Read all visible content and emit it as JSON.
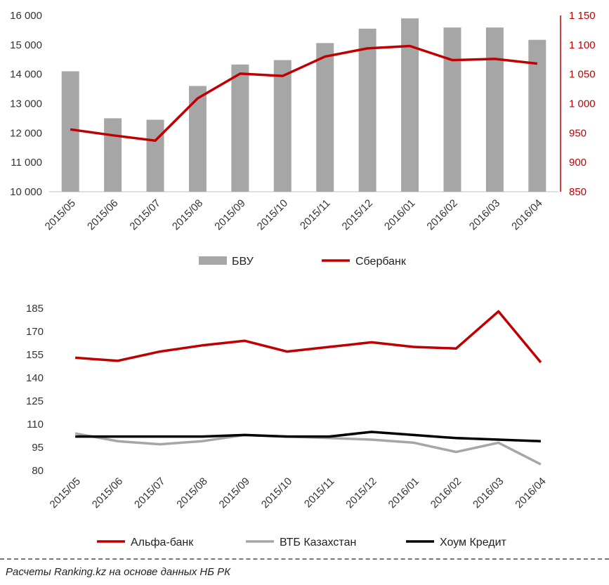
{
  "chart_data": [
    {
      "type": "bar",
      "categories": [
        "2015/05",
        "2015/06",
        "2015/07",
        "2015/08",
        "2015/09",
        "2015/10",
        "2015/11",
        "2015/12",
        "2016/01",
        "2016/02",
        "2016/03",
        "2016/04"
      ],
      "series": [
        {
          "name": "БВУ",
          "kind": "bar",
          "axis": "left",
          "color": "#a6a6a6",
          "values": [
            14100,
            12500,
            12450,
            13600,
            14330,
            14480,
            15060,
            15550,
            15900,
            15590,
            15590,
            15170
          ]
        },
        {
          "name": "Сбербанк",
          "kind": "line",
          "axis": "right",
          "color": "#c00000",
          "values": [
            956,
            946,
            937,
            1009,
            1051,
            1047,
            1080,
            1094,
            1098,
            1074,
            1076,
            1068
          ]
        }
      ],
      "ylim": [
        10000,
        16000
      ],
      "y_ticks": [
        "10 000",
        "11 000",
        "12 000",
        "13 000",
        "14 000",
        "15 000",
        "16 000"
      ],
      "y2lim": [
        850,
        1150
      ],
      "y2_ticks": [
        "850",
        "900",
        "950",
        "1 000",
        "1 050",
        "1 100",
        "1 150"
      ],
      "legend": [
        "БВУ",
        "Сбербанк"
      ],
      "legend_position": "bottom",
      "grid": false
    },
    {
      "type": "line",
      "categories": [
        "2015/05",
        "2015/06",
        "2015/07",
        "2015/08",
        "2015/09",
        "2015/10",
        "2015/11",
        "2015/12",
        "2016/01",
        "2016/02",
        "2016/03",
        "2016/04"
      ],
      "series": [
        {
          "name": "Альфа-банк",
          "color": "#c00000",
          "values": [
            153,
            151,
            157,
            161,
            164,
            157,
            160,
            163,
            160,
            159,
            183,
            150
          ]
        },
        {
          "name": "ВТБ Казахстан",
          "color": "#a6a6a6",
          "values": [
            104,
            99,
            97,
            99,
            103,
            102,
            101,
            100,
            98,
            92,
            98,
            84
          ]
        },
        {
          "name": "Хоум Кредит",
          "color": "#000000",
          "values": [
            102,
            102,
            102,
            102,
            103,
            102,
            102,
            105,
            103,
            101,
            100,
            99
          ]
        }
      ],
      "ylim": [
        80,
        185
      ],
      "y_ticks": [
        "80",
        "95",
        "110",
        "125",
        "140",
        "155",
        "170",
        "185"
      ],
      "legend": [
        "Альфа-банк",
        "ВТБ Казахстан",
        "Хоум Кредит"
      ],
      "legend_position": "bottom",
      "grid": false
    }
  ],
  "footer": {
    "source": "Расчеты Ranking.kz на основе данных НБ РК"
  }
}
